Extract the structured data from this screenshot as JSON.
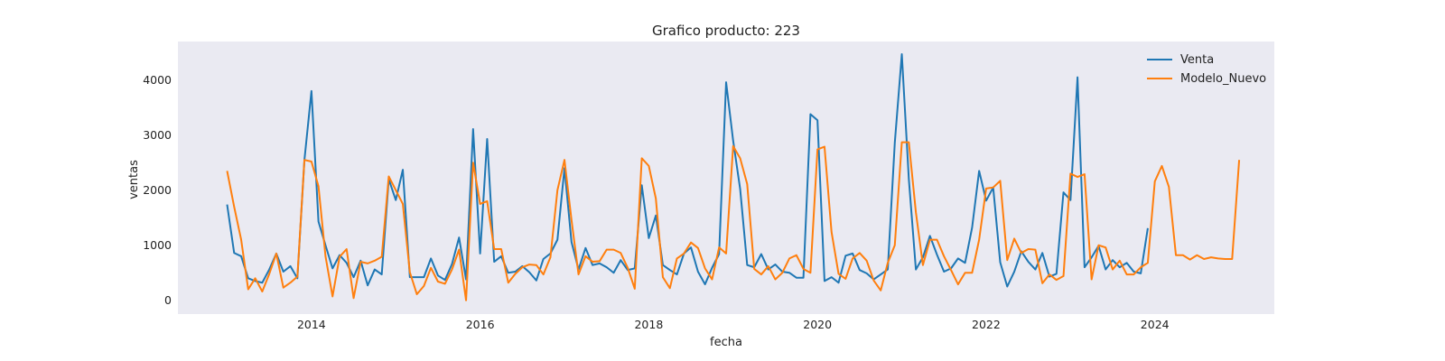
{
  "chart_data": {
    "type": "line",
    "title": "Grafico producto: 223",
    "xlabel": "fecha",
    "ylabel": "ventas",
    "x_start": "2013-01",
    "x_ticks": [
      "2014",
      "2016",
      "2018",
      "2020",
      "2022",
      "2024"
    ],
    "y_ticks": [
      "0",
      "1000",
      "2000",
      "3000",
      "4000"
    ],
    "xlim": [
      "2012-06",
      "2025-06"
    ],
    "ylim": [
      -250,
      4700
    ],
    "grid": false,
    "legend": "top-right",
    "series": [
      {
        "name": "Venta",
        "color": "#1f77b4",
        "values": [
          1740,
          860,
          800,
          400,
          350,
          320,
          560,
          850,
          520,
          620,
          400,
          2550,
          3800,
          1430,
          1000,
          580,
          820,
          680,
          420,
          720,
          270,
          560,
          470,
          2200,
          1820,
          2370,
          420,
          420,
          420,
          760,
          450,
          370,
          660,
          1140,
          380,
          3110,
          850,
          2930,
          700,
          800,
          500,
          520,
          620,
          510,
          360,
          750,
          850,
          1100,
          2400,
          1060,
          560,
          950,
          640,
          670,
          600,
          500,
          730,
          550,
          580,
          2090,
          1130,
          1540,
          640,
          550,
          470,
          850,
          960,
          520,
          290,
          590,
          840,
          3960,
          2900,
          2020,
          640,
          600,
          840,
          560,
          650,
          520,
          500,
          410,
          410,
          3380,
          3270,
          350,
          420,
          320,
          810,
          850,
          550,
          490,
          380,
          470,
          560,
          2860,
          4470,
          2200,
          560,
          780,
          1170,
          830,
          520,
          580,
          760,
          680,
          1320,
          2350,
          1810,
          2050,
          690,
          250,
          520,
          890,
          700,
          560,
          860,
          430,
          480,
          1960,
          1820,
          4050,
          600,
          780,
          990,
          560,
          730,
          600,
          680,
          520,
          490,
          1310
        ]
      },
      {
        "name": "Modelo_Nuevo",
        "color": "#ff7f0e",
        "values": [
          2350,
          1700,
          1100,
          200,
          400,
          160,
          480,
          850,
          230,
          320,
          430,
          2550,
          2520,
          2070,
          800,
          70,
          790,
          930,
          40,
          700,
          670,
          720,
          790,
          2250,
          2000,
          1750,
          510,
          110,
          260,
          590,
          340,
          300,
          560,
          920,
          0,
          2500,
          1750,
          1800,
          930,
          930,
          320,
          480,
          600,
          650,
          640,
          470,
          780,
          2000,
          2550,
          1460,
          470,
          800,
          700,
          710,
          920,
          920,
          860,
          590,
          210,
          2580,
          2440,
          1850,
          420,
          220,
          760,
          850,
          1050,
          950,
          580,
          380,
          960,
          850,
          2800,
          2580,
          2110,
          570,
          470,
          620,
          380,
          500,
          760,
          820,
          570,
          500,
          2740,
          2790,
          1240,
          480,
          390,
          760,
          860,
          720,
          360,
          180,
          680,
          1000,
          2870,
          2870,
          1600,
          640,
          1100,
          1100,
          800,
          550,
          290,
          500,
          500,
          1100,
          2030,
          2050,
          2170,
          730,
          1120,
          860,
          930,
          920,
          310,
          470,
          370,
          440,
          2300,
          2240,
          2290,
          380,
          1000,
          960,
          560,
          720,
          470,
          470,
          600,
          680,
          2160,
          2440,
          2060,
          820,
          820,
          740,
          820,
          750,
          780,
          760,
          750,
          750,
          2550
        ]
      }
    ]
  }
}
